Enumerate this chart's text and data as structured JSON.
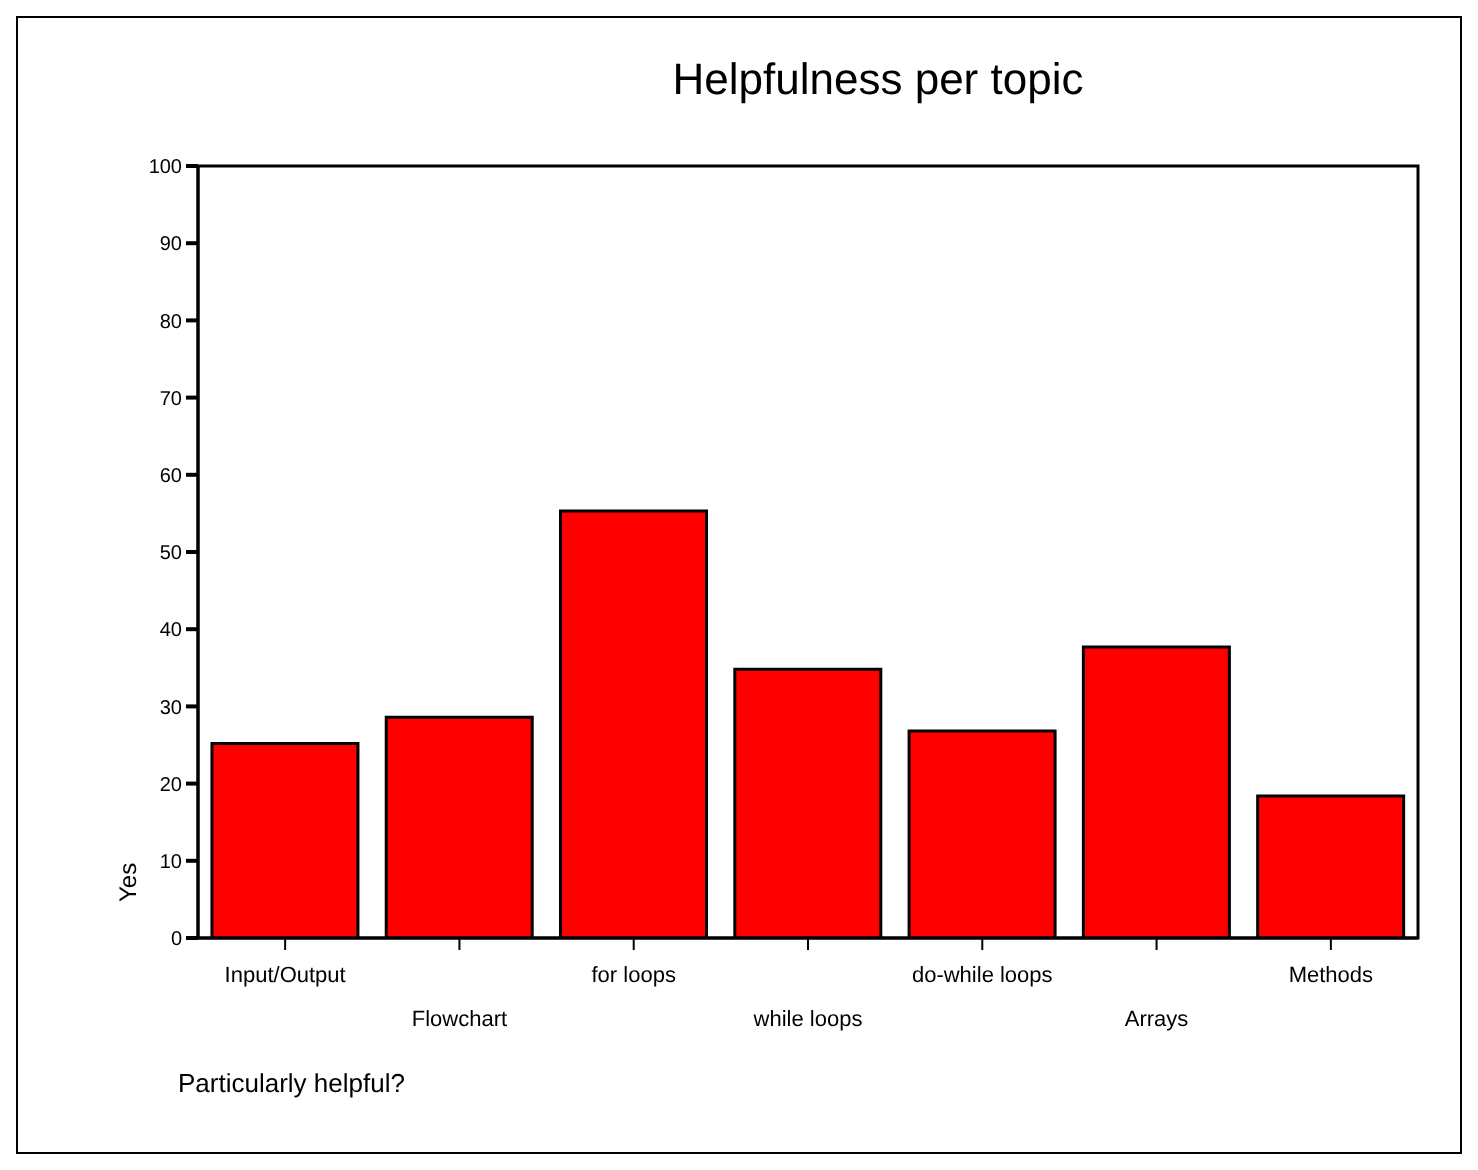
{
  "chart_data": {
    "type": "bar",
    "title": "Helpfulness per topic",
    "xlabel": "Particularly helpful?",
    "ylabel": "Yes",
    "categories": [
      "Input/Output",
      "Flowchart",
      "for loops",
      "while loops",
      "do-while loops",
      "Arrays",
      "Methods"
    ],
    "values": [
      25.2,
      28.6,
      55.3,
      34.8,
      26.8,
      37.7,
      18.4
    ],
    "color": "#ff0000",
    "ylim": [
      0,
      100
    ],
    "yticks": [
      0,
      10,
      20,
      30,
      40,
      50,
      60,
      70,
      80,
      90,
      100
    ],
    "grid": false,
    "legend": false
  }
}
